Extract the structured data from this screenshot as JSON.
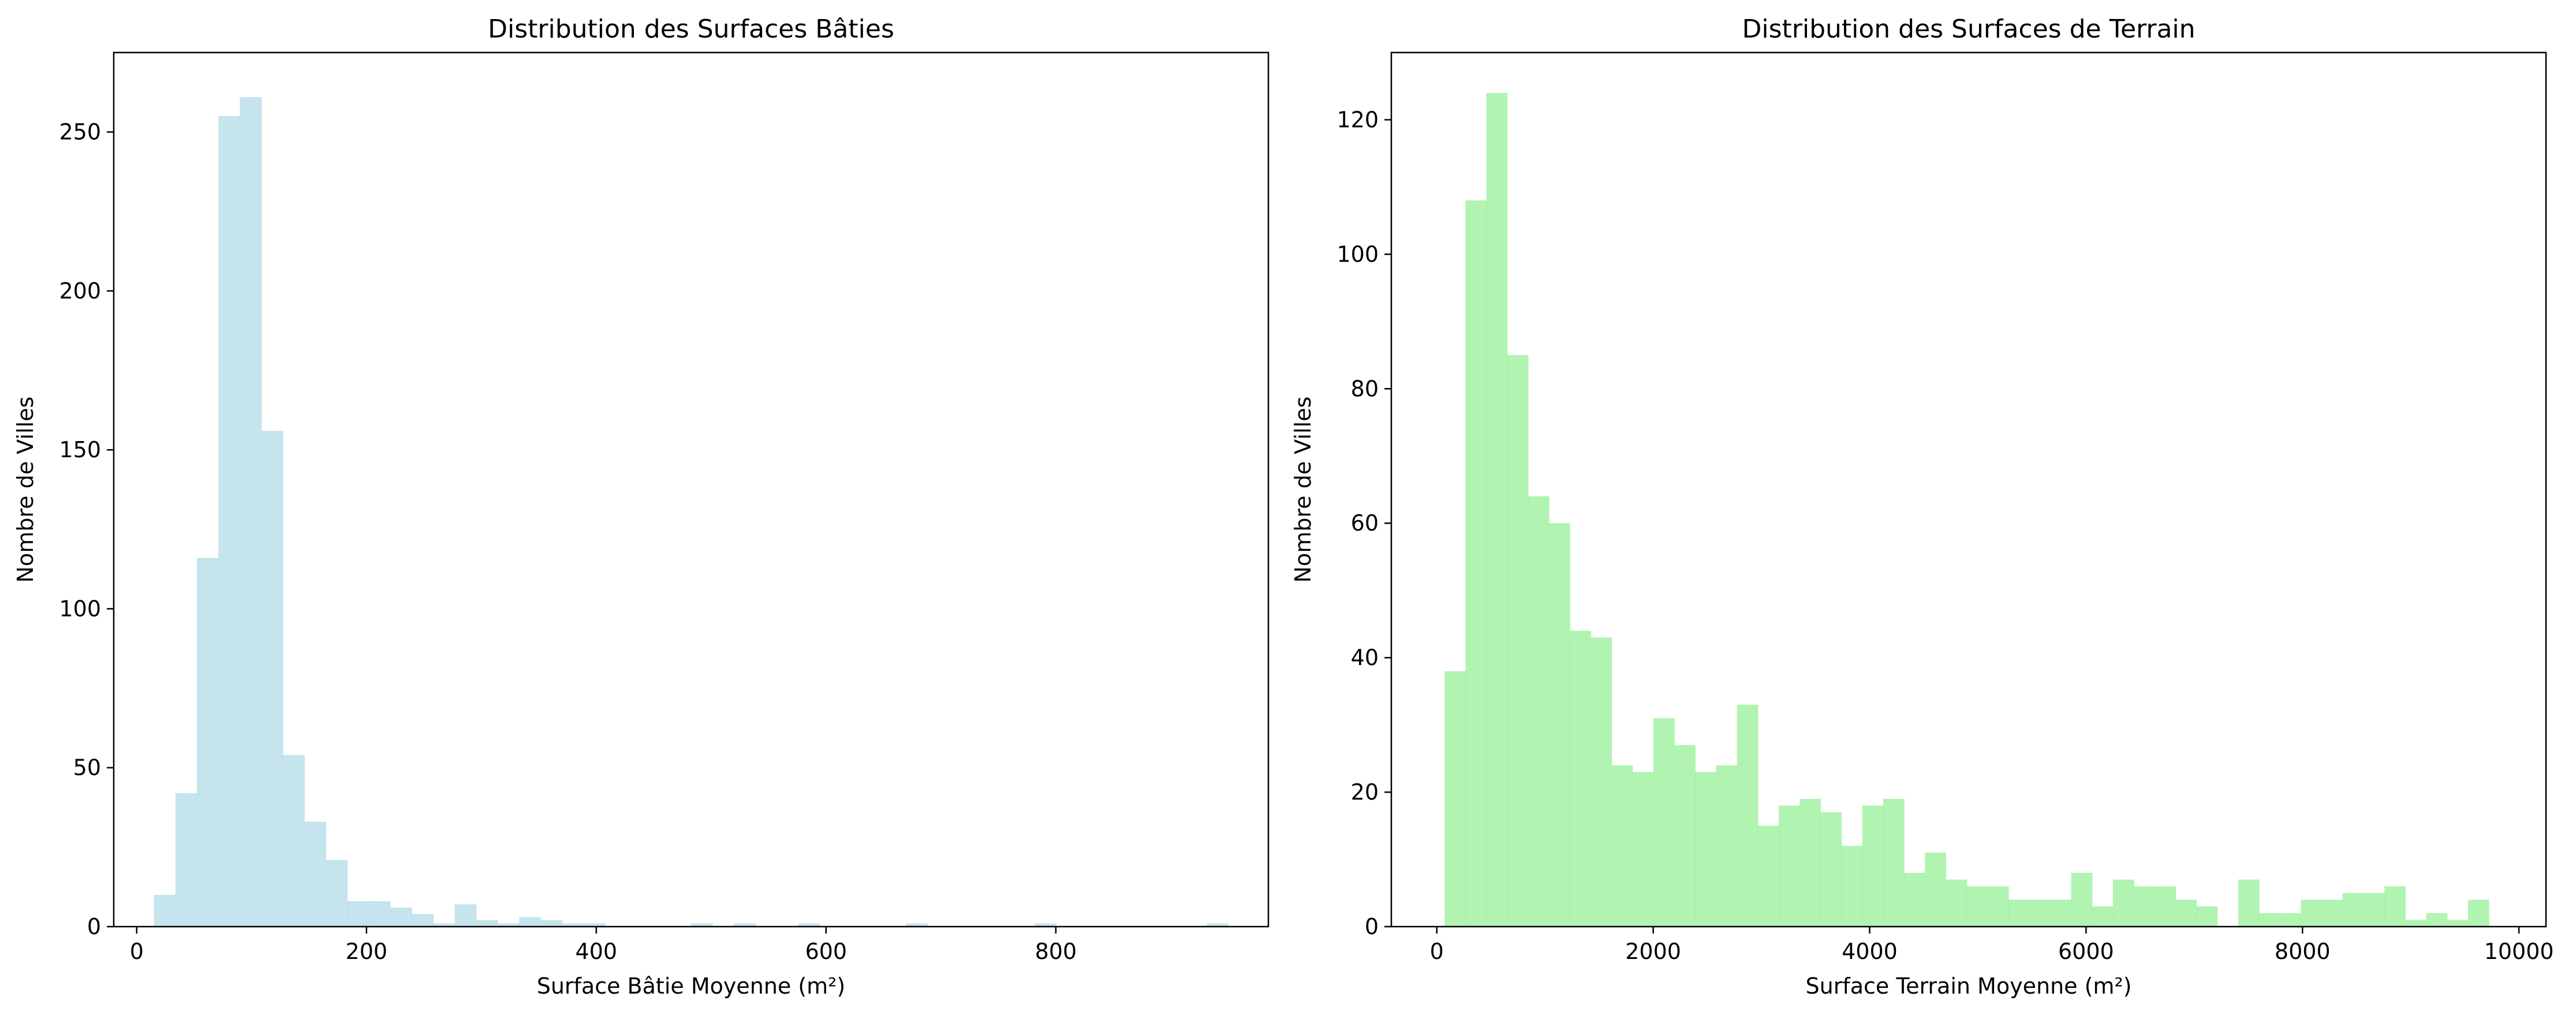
{
  "figure": {
    "background": "#ffffff"
  },
  "chart_data": [
    {
      "type": "bar",
      "title": "Distribution des Surfaces Bâties",
      "xlabel": "Surface Bâtie Moyenne (m²)",
      "ylabel": "Nombre de Villes",
      "color": "#add8e6",
      "xlim": [
        -20,
        985
      ],
      "ylim": [
        0,
        275
      ],
      "xticks": [
        0,
        200,
        400,
        600,
        800
      ],
      "yticks": [
        0,
        50,
        100,
        150,
        200,
        250
      ],
      "bin_start": 15,
      "bin_width": 18.7,
      "values": [
        10,
        42,
        116,
        255,
        261,
        156,
        54,
        33,
        21,
        8,
        8,
        6,
        4,
        1,
        7,
        2,
        1,
        3,
        2,
        1,
        1,
        0,
        0,
        0,
        0,
        1,
        0,
        1,
        0,
        0,
        1,
        0,
        0,
        0,
        0,
        1,
        0,
        0,
        0,
        0,
        0,
        1,
        0,
        0,
        0,
        0,
        0,
        0,
        0,
        1
      ],
      "grid": false
    },
    {
      "type": "bar",
      "title": "Distribution des Surfaces de Terrain",
      "xlabel": "Surface Terrain Moyenne (m²)",
      "ylabel": "Nombre de Villes",
      "color": "#90ee90",
      "xlim": [
        -420,
        10250
      ],
      "ylim": [
        0,
        130
      ],
      "xticks": [
        0,
        2000,
        4000,
        6000,
        8000,
        10000
      ],
      "yticks": [
        0,
        20,
        40,
        60,
        80,
        100,
        120
      ],
      "bin_start": 72,
      "bin_width": 193,
      "values": [
        38,
        108,
        124,
        85,
        64,
        60,
        44,
        43,
        24,
        23,
        31,
        27,
        23,
        24,
        33,
        15,
        18,
        19,
        17,
        12,
        18,
        19,
        8,
        11,
        7,
        6,
        6,
        4,
        4,
        4,
        8,
        3,
        7,
        6,
        6,
        4,
        3,
        0,
        7,
        2,
        2,
        4,
        4,
        5,
        5,
        6,
        1,
        2,
        1,
        4
      ],
      "grid": false
    }
  ]
}
